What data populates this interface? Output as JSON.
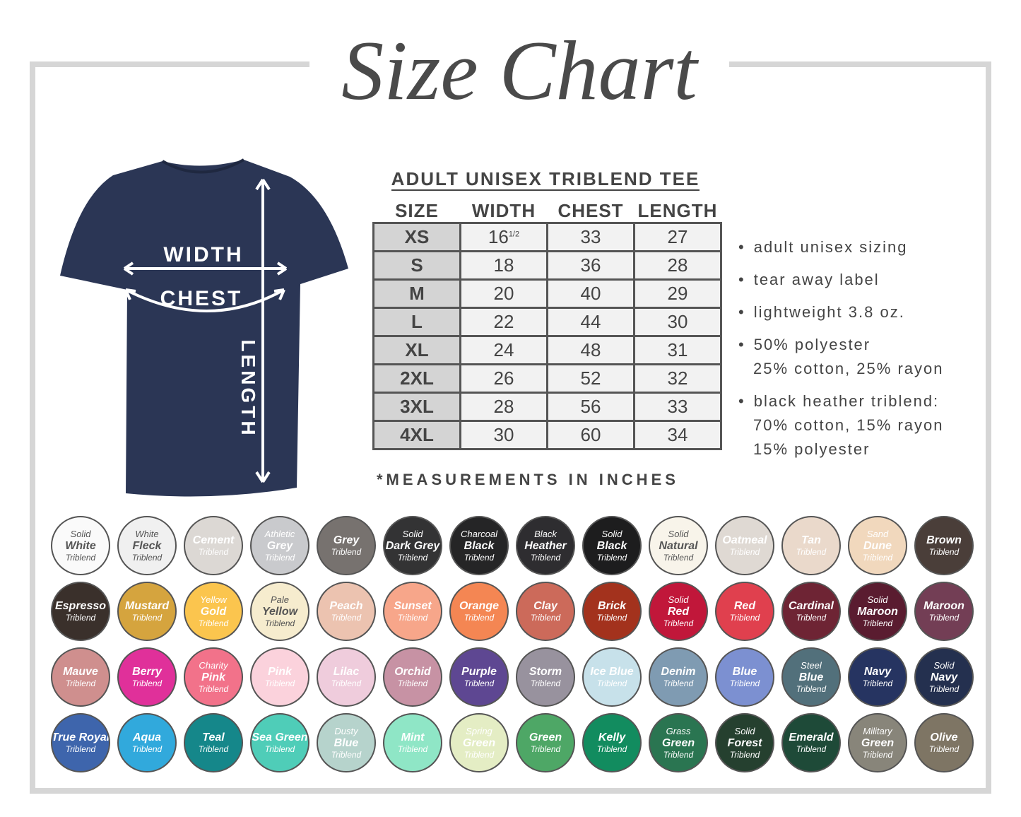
{
  "title": "Size Chart",
  "shirt": {
    "color": "#2b3655",
    "labels": {
      "width": "WIDTH",
      "chest": "CHEST",
      "length": "LENGTH"
    }
  },
  "table": {
    "title": "ADULT UNISEX TRIBLEND TEE",
    "headers": [
      "SIZE",
      "WIDTH",
      "CHEST",
      "LENGTH"
    ],
    "rows": [
      {
        "size": "XS",
        "width": "16",
        "width_frac": "1/2",
        "chest": "33",
        "length": "27"
      },
      {
        "size": "S",
        "width": "18",
        "chest": "36",
        "length": "28"
      },
      {
        "size": "M",
        "width": "20",
        "chest": "40",
        "length": "29"
      },
      {
        "size": "L",
        "width": "22",
        "chest": "44",
        "length": "30"
      },
      {
        "size": "XL",
        "width": "24",
        "chest": "48",
        "length": "31"
      },
      {
        "size": "2XL",
        "width": "26",
        "chest": "52",
        "length": "32"
      },
      {
        "size": "3XL",
        "width": "28",
        "chest": "56",
        "length": "33"
      },
      {
        "size": "4XL",
        "width": "30",
        "chest": "60",
        "length": "34"
      }
    ],
    "note": "*MEASUREMENTS IN INCHES"
  },
  "features": [
    {
      "line1": "adult unisex sizing"
    },
    {
      "line1": "tear away label"
    },
    {
      "line1": "lightweight 3.8 oz."
    },
    {
      "line1": "50% polyester",
      "line2": "25% cotton, 25% rayon"
    },
    {
      "line1": "black heather triblend:",
      "line2": "70% cotton, 15% rayon",
      "line3": "15% polyester"
    }
  ],
  "swatches": [
    {
      "lines": [
        "Solid",
        "White",
        "Triblend"
      ],
      "color": "#fafafa",
      "text": "#555"
    },
    {
      "lines": [
        "White",
        "Fleck",
        "Triblend"
      ],
      "color": "#f0f0f0",
      "text": "#555"
    },
    {
      "lines": [
        "Cement",
        "Triblend"
      ],
      "color": "#dcd8d4",
      "text": "#fff"
    },
    {
      "lines": [
        "Athletic",
        "Grey",
        "Triblend"
      ],
      "color": "#c9cacd",
      "text": "#fff"
    },
    {
      "lines": [
        "Grey",
        "Triblend"
      ],
      "color": "#77726f",
      "text": "#fff"
    },
    {
      "lines": [
        "Solid",
        "Dark Grey",
        "Triblend"
      ],
      "color": "#333334",
      "text": "#fff"
    },
    {
      "lines": [
        "Charcoal",
        "Black",
        "Triblend"
      ],
      "color": "#252526",
      "text": "#fff"
    },
    {
      "lines": [
        "Black",
        "Heather",
        "Triblend"
      ],
      "color": "#2e2d30",
      "text": "#fff"
    },
    {
      "lines": [
        "Solid",
        "Black",
        "Triblend"
      ],
      "color": "#1d1d1e",
      "text": "#fff"
    },
    {
      "lines": [
        "Solid",
        "Natural",
        "Triblend"
      ],
      "color": "#f8f4ea",
      "text": "#555"
    },
    {
      "lines": [
        "Oatmeal",
        "Triblend"
      ],
      "color": "#dfd9d3",
      "text": "#fff"
    },
    {
      "lines": [
        "Tan",
        "Triblend"
      ],
      "color": "#ead9cb",
      "text": "#fff"
    },
    {
      "lines": [
        "Sand",
        "Dune",
        "Triblend"
      ],
      "color": "#f1d8bd",
      "text": "#fff"
    },
    {
      "lines": [
        "Brown",
        "Triblend"
      ],
      "color": "#4a3e39",
      "text": "#fff"
    },
    {
      "lines": [
        "Espresso",
        "Triblend"
      ],
      "color": "#3a302b",
      "text": "#fff"
    },
    {
      "lines": [
        "Mustard",
        "Triblend"
      ],
      "color": "#d5a43e",
      "text": "#fff"
    },
    {
      "lines": [
        "Yellow",
        "Gold",
        "Triblend"
      ],
      "color": "#fbc54e",
      "text": "#fff"
    },
    {
      "lines": [
        "Pale",
        "Yellow",
        "Triblend"
      ],
      "color": "#f6ecce",
      "text": "#555"
    },
    {
      "lines": [
        "Peach",
        "Triblend"
      ],
      "color": "#ecc3b0",
      "text": "#fff"
    },
    {
      "lines": [
        "Sunset",
        "Triblend"
      ],
      "color": "#f7a68a",
      "text": "#fff"
    },
    {
      "lines": [
        "Orange",
        "Triblend"
      ],
      "color": "#f48653",
      "text": "#fff"
    },
    {
      "lines": [
        "Clay",
        "Triblend"
      ],
      "color": "#cc6a5a",
      "text": "#fff"
    },
    {
      "lines": [
        "Brick",
        "Triblend"
      ],
      "color": "#a3321d",
      "text": "#fff"
    },
    {
      "lines": [
        "Solid",
        "Red",
        "Triblend"
      ],
      "color": "#c1173a",
      "text": "#fff"
    },
    {
      "lines": [
        "Red",
        "Triblend"
      ],
      "color": "#e0404e",
      "text": "#fff"
    },
    {
      "lines": [
        "Cardinal",
        "Triblend"
      ],
      "color": "#6e2434",
      "text": "#fff"
    },
    {
      "lines": [
        "Solid",
        "Maroon",
        "Triblend"
      ],
      "color": "#5a1c30",
      "text": "#fff"
    },
    {
      "lines": [
        "Maroon",
        "Triblend"
      ],
      "color": "#733e55",
      "text": "#fff"
    },
    {
      "lines": [
        "Mauve",
        "Triblend"
      ],
      "color": "#cf8f8e",
      "text": "#fff"
    },
    {
      "lines": [
        "Berry",
        "Triblend"
      ],
      "color": "#e0309a",
      "text": "#fff"
    },
    {
      "lines": [
        "Charity",
        "Pink",
        "Triblend"
      ],
      "color": "#f2728a",
      "text": "#fff"
    },
    {
      "lines": [
        "Pink",
        "Triblend"
      ],
      "color": "#fbd2dc",
      "text": "#fff"
    },
    {
      "lines": [
        "Lilac",
        "Triblend"
      ],
      "color": "#efccdc",
      "text": "#fff"
    },
    {
      "lines": [
        "Orchid",
        "Triblend"
      ],
      "color": "#c792a4",
      "text": "#fff"
    },
    {
      "lines": [
        "Purple",
        "Triblend"
      ],
      "color": "#5e4792",
      "text": "#fff"
    },
    {
      "lines": [
        "Storm",
        "Triblend"
      ],
      "color": "#98929e",
      "text": "#fff"
    },
    {
      "lines": [
        "Ice Blue",
        "Triblend"
      ],
      "color": "#c7e1ea",
      "text": "#fff"
    },
    {
      "lines": [
        "Denim",
        "Triblend"
      ],
      "color": "#7f9bb2",
      "text": "#fff"
    },
    {
      "lines": [
        "Blue",
        "Triblend"
      ],
      "color": "#7c90d1",
      "text": "#fff"
    },
    {
      "lines": [
        "Steel",
        "Blue",
        "Triblend"
      ],
      "color": "#52707b",
      "text": "#fff"
    },
    {
      "lines": [
        "Navy",
        "Triblend"
      ],
      "color": "#263461",
      "text": "#fff"
    },
    {
      "lines": [
        "Solid",
        "Navy",
        "Triblend"
      ],
      "color": "#24304f",
      "text": "#fff"
    },
    {
      "lines": [
        "True Royal",
        "Triblend"
      ],
      "color": "#3e65ac",
      "text": "#fff"
    },
    {
      "lines": [
        "Aqua",
        "Triblend"
      ],
      "color": "#31a9dc",
      "text": "#fff"
    },
    {
      "lines": [
        "Teal",
        "Triblend"
      ],
      "color": "#15878a",
      "text": "#fff"
    },
    {
      "lines": [
        "Sea Green",
        "Triblend"
      ],
      "color": "#4fcdb8",
      "text": "#fff"
    },
    {
      "lines": [
        "Dusty",
        "Blue",
        "Triblend"
      ],
      "color": "#b6d3cc",
      "text": "#fff"
    },
    {
      "lines": [
        "Mint",
        "Triblend"
      ],
      "color": "#8fe6c6",
      "text": "#fff"
    },
    {
      "lines": [
        "Spring",
        "Green",
        "Triblend"
      ],
      "color": "#e4edc4",
      "text": "#fff"
    },
    {
      "lines": [
        "Green",
        "Triblend"
      ],
      "color": "#4ea766",
      "text": "#fff"
    },
    {
      "lines": [
        "Kelly",
        "Triblend"
      ],
      "color": "#128c5f",
      "text": "#fff"
    },
    {
      "lines": [
        "Grass",
        "Green",
        "Triblend"
      ],
      "color": "#2a7551",
      "text": "#fff"
    },
    {
      "lines": [
        "Solid",
        "Forest",
        "Triblend"
      ],
      "color": "#25402f",
      "text": "#fff"
    },
    {
      "lines": [
        "Emerald",
        "Triblend"
      ],
      "color": "#1e4a38",
      "text": "#fff"
    },
    {
      "lines": [
        "Military",
        "Green",
        "Triblend"
      ],
      "color": "#88857a",
      "text": "#fff"
    },
    {
      "lines": [
        "Olive",
        "Triblend"
      ],
      "color": "#7e7564",
      "text": "#fff"
    }
  ]
}
